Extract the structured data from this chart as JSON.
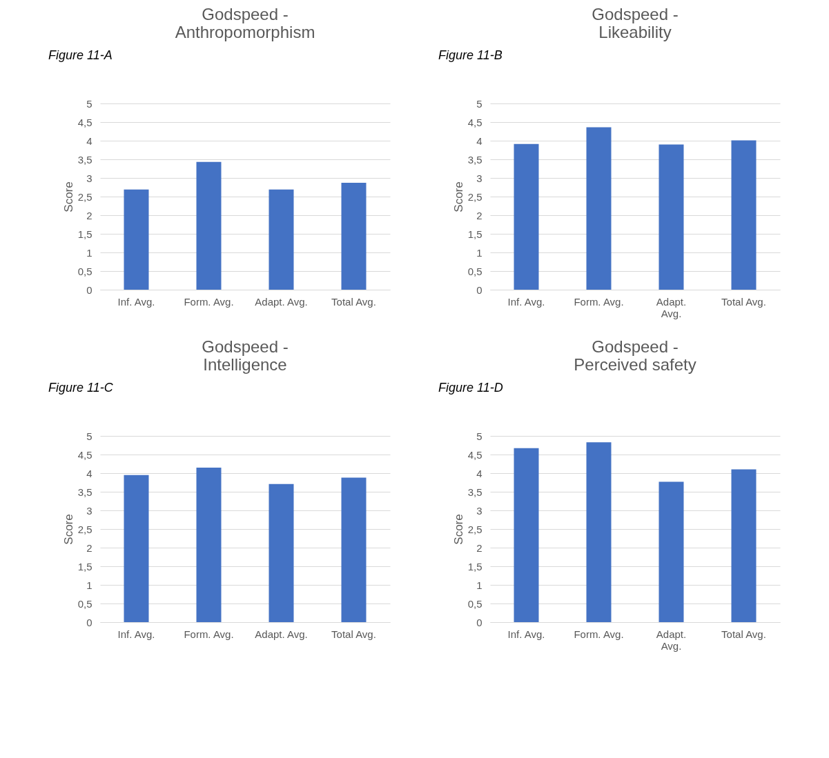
{
  "chart_data": [
    {
      "type": "bar",
      "title": "Godspeed - Anthropomorphism",
      "ylabel": "Score",
      "annotations": [
        "Figure 11-A"
      ],
      "categories": [
        "Inf. Avg.",
        "Form. Avg.",
        "Adapt. Avg.",
        "Total Avg."
      ],
      "values": [
        2.69,
        3.43,
        2.69,
        2.87
      ],
      "color": "#4472c4",
      "ylim": [
        0,
        5
      ],
      "yticks": [
        0,
        {
          "value": 0.5,
          "label": "0,5"
        },
        1,
        {
          "value": 1.5,
          "label": "1,5"
        },
        2,
        {
          "value": 2.5,
          "label": "2,5"
        },
        3,
        {
          "value": 3.5,
          "label": "3,5"
        },
        4,
        {
          "value": 4.5,
          "label": "4,5"
        },
        5
      ],
      "grid": "y"
    },
    {
      "type": "bar",
      "title": "Godspeed - Likeability",
      "ylabel": "Score",
      "annotations": [
        "Figure 11-B"
      ],
      "categories": [
        "Inf. Avg.",
        "Form. Avg.",
        "Adapt. Avg.",
        "Total Avg."
      ],
      "values": [
        3.91,
        4.36,
        3.9,
        4.01
      ],
      "color": "#4472c4",
      "ylim": [
        0,
        5
      ],
      "yticks": [
        0,
        {
          "value": 0.5,
          "label": "0,5"
        },
        1,
        {
          "value": 1.5,
          "label": "1,5"
        },
        2,
        {
          "value": 2.5,
          "label": "2,5"
        },
        3,
        {
          "value": 3.5,
          "label": "3,5"
        },
        4,
        {
          "value": 4.5,
          "label": "4,5"
        },
        5
      ],
      "grid": "y"
    },
    {
      "type": "bar",
      "title": "Godspeed - Intelligence",
      "ylabel": "Score",
      "annotations": [
        "Figure 11-C"
      ],
      "categories": [
        "Inf. Avg.",
        "Form. Avg.",
        "Adapt. Avg.",
        "Total Avg."
      ],
      "values": [
        3.95,
        4.15,
        3.71,
        3.88
      ],
      "color": "#4472c4",
      "ylim": [
        0,
        5
      ],
      "yticks": [
        0,
        {
          "value": 0.5,
          "label": "0,5"
        },
        1,
        {
          "value": 1.5,
          "label": "1,5"
        },
        2,
        {
          "value": 2.5,
          "label": "2,5"
        },
        3,
        {
          "value": 3.5,
          "label": "3,5"
        },
        4,
        {
          "value": 4.5,
          "label": "4,5"
        },
        5
      ],
      "grid": "y"
    },
    {
      "type": "bar",
      "title": "Godspeed - Perceived safety",
      "ylabel": "Score",
      "annotations": [
        "Figure 11-D"
      ],
      "categories": [
        "Inf. Avg.",
        "Form. Avg.",
        "Adapt. Avg.",
        "Total Avg."
      ],
      "values": [
        4.67,
        4.83,
        3.77,
        4.1
      ],
      "color": "#4472c4",
      "ylim": [
        0,
        5
      ],
      "yticks": [
        0,
        {
          "value": 0.5,
          "label": "0,5"
        },
        1,
        {
          "value": 1.5,
          "label": "1,5"
        },
        2,
        {
          "value": 2.5,
          "label": "2,5"
        },
        3,
        {
          "value": 3.5,
          "label": "3,5"
        },
        4,
        {
          "value": 4.5,
          "label": "4,5"
        },
        5
      ],
      "grid": "y"
    }
  ]
}
